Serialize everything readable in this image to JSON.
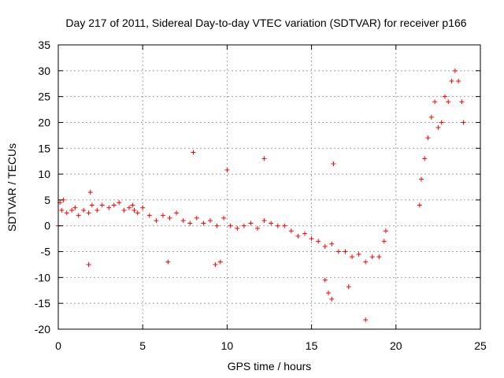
{
  "chart_data": {
    "type": "scatter",
    "title": "Day 217 of 2011, Sidereal Day-to-day VTEC variation (SDTVAR) for receiver p166",
    "xlabel": "GPS time / hours",
    "ylabel": "SDTVAR / TECUs",
    "xlim": [
      0,
      25
    ],
    "ylim": [
      -20,
      35
    ],
    "xticks": [
      0,
      5,
      10,
      15,
      20,
      25
    ],
    "yticks": [
      -20,
      -15,
      -10,
      -5,
      0,
      5,
      10,
      15,
      20,
      25,
      30,
      35
    ],
    "grid": true,
    "marker": "+",
    "color": "#ff0000",
    "series": [
      {
        "name": "SDTVAR",
        "x": [
          0.0,
          0.1,
          0.2,
          0.3,
          0.5,
          0.8,
          1.0,
          1.2,
          1.5,
          1.8,
          1.9,
          2.0,
          2.3,
          2.6,
          3.0,
          3.3,
          3.6,
          3.9,
          4.2,
          4.4,
          4.5,
          4.7,
          5.0,
          5.4,
          5.8,
          6.2,
          6.6,
          7.0,
          7.4,
          7.8,
          8.2,
          8.6,
          9.0,
          9.4,
          9.8,
          10.2,
          10.6,
          11.0,
          11.4,
          11.8,
          12.2,
          12.6,
          13.0,
          13.4,
          13.8,
          14.2,
          14.6,
          15.0,
          15.4,
          15.8,
          16.2,
          16.6,
          17.0,
          17.4,
          17.8,
          18.2,
          18.6,
          19.0,
          19.3,
          19.4,
          21.4,
          21.5,
          21.7,
          21.9,
          22.1,
          22.3,
          22.5,
          22.7,
          22.9,
          23.1,
          23.3,
          23.5,
          23.7,
          23.9,
          24.0,
          1.8,
          8.0,
          9.3,
          10.0,
          12.2,
          15.8,
          16.2,
          16.3,
          17.2,
          18.2,
          9.6,
          6.5,
          16.0
        ],
        "y": [
          0.0,
          4.5,
          3.0,
          5.0,
          2.5,
          3.0,
          3.5,
          2.0,
          3.0,
          2.5,
          6.5,
          4.0,
          3.0,
          4.0,
          3.5,
          4.0,
          4.5,
          3.0,
          3.5,
          4.0,
          3.0,
          2.5,
          3.5,
          2.0,
          1.0,
          2.0,
          1.5,
          2.5,
          1.0,
          0.5,
          1.5,
          0.5,
          1.0,
          0.0,
          1.5,
          0.0,
          -0.5,
          0.0,
          0.5,
          -0.5,
          1.0,
          0.5,
          0.0,
          0.0,
          -1.0,
          -2.0,
          -1.5,
          -2.5,
          -3.0,
          -4.0,
          -3.5,
          -5.0,
          -5.0,
          -6.0,
          -5.5,
          -7.0,
          -6.0,
          -6.0,
          -3.0,
          -1.0,
          4.0,
          9.0,
          13.0,
          17.0,
          21.0,
          24.0,
          19.0,
          20.0,
          25.0,
          24.0,
          28.0,
          30.0,
          28.0,
          24.0,
          20.0,
          -7.5,
          14.2,
          -7.5,
          10.8,
          13.0,
          -10.5,
          -14.2,
          12.0,
          -11.8,
          -18.2,
          -7.0,
          -7.0,
          -13.0
        ]
      }
    ]
  }
}
